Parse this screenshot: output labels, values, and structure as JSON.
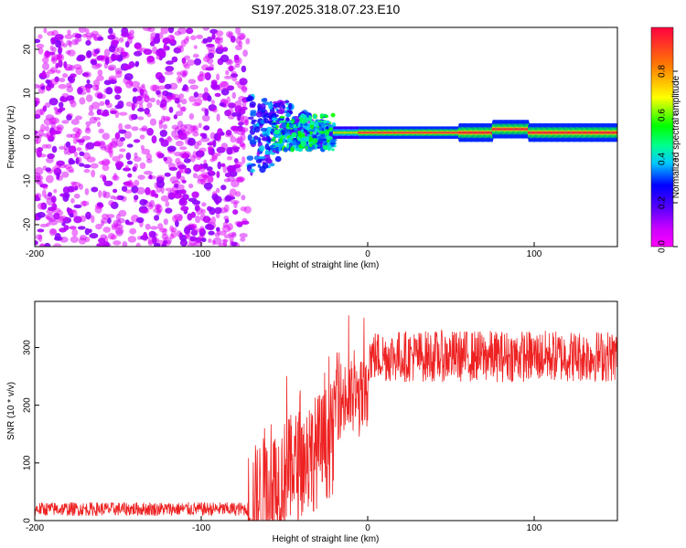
{
  "title": "S197.2025.318.07.23.E10",
  "chart_data": [
    {
      "type": "heatmap",
      "name": "spectrogram",
      "xlabel": "Height of straight line (km)",
      "ylabel": "Frequency (Hz)",
      "xlim": [
        -200,
        150
      ],
      "ylim": [
        -25,
        25
      ],
      "xticks": [
        -200,
        -100,
        0,
        100
      ],
      "yticks": [
        -20,
        -10,
        0,
        10,
        20
      ],
      "colorbar": {
        "label": "Normalized spectral amplitude",
        "range": [
          0,
          1
        ],
        "ticks": [
          0.0,
          0.2,
          0.4,
          0.6,
          0.8
        ],
        "tick_labels": [
          "0.0",
          "0.2",
          "0.4",
          "0.6",
          "0.8"
        ]
      },
      "regions": [
        {
          "x_range": [
            -200,
            -72
          ],
          "freq_range": [
            -25,
            25
          ],
          "amplitude": [
            0.02,
            0.08
          ],
          "description": "broadband noise"
        },
        {
          "x_range": [
            -72,
            -20
          ],
          "freq_range": [
            -8,
            8
          ],
          "amplitude": [
            0.08,
            0.35
          ],
          "description": "transition"
        },
        {
          "x_range": [
            -20,
            150
          ],
          "freq_center": 1,
          "amplitude": [
            0.6,
            1.0
          ],
          "description": "narrowband signal near 1 Hz"
        }
      ]
    },
    {
      "type": "line",
      "name": "snr",
      "xlabel": "Height of straight line (km)",
      "ylabel": "SNR (10 * v/v)",
      "xlim": [
        -200,
        150
      ],
      "ylim": [
        0,
        380
      ],
      "xticks": [
        -200,
        -100,
        0,
        100
      ],
      "yticks": [
        0,
        100,
        200,
        300
      ],
      "color": "#ee2222",
      "segments": [
        {
          "x": [
            -200,
            -72
          ],
          "mean": 20,
          "amp": 12
        },
        {
          "x": [
            -72,
            -20
          ],
          "mean": 90,
          "amp": 100
        },
        {
          "x": [
            -20,
            0
          ],
          "mean": 210,
          "amp": 70
        },
        {
          "x": [
            0,
            150
          ],
          "mean": 285,
          "amp": 45
        }
      ]
    }
  ]
}
